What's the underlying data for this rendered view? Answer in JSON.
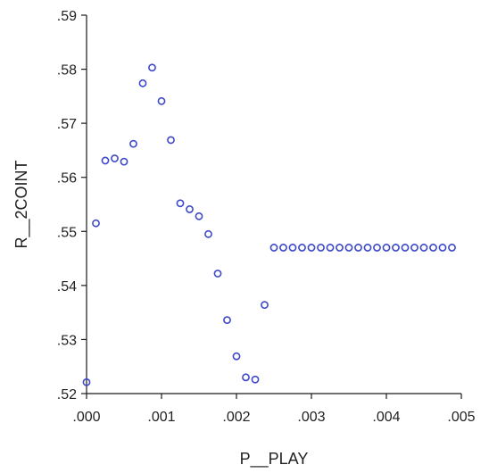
{
  "chart_data": {
    "type": "scatter",
    "xlabel": "P__PLAY",
    "ylabel": "R__2COINT",
    "xlim": [
      0.0,
      0.005
    ],
    "ylim": [
      0.52,
      0.59
    ],
    "x_ticks": [
      ".000",
      ".001",
      ".002",
      ".003",
      ".004",
      ".005"
    ],
    "y_ticks": [
      ".52",
      ".53",
      ".54",
      ".55",
      ".56",
      ".57",
      ".58",
      ".59"
    ],
    "grid": false,
    "marker": "hollow-circle",
    "point_color": "#3d48c8",
    "x": [
      0.0,
      0.000125,
      0.00025,
      0.000375,
      0.0005,
      0.000625,
      0.00075,
      0.000875,
      0.001,
      0.001125,
      0.00125,
      0.001375,
      0.0015,
      0.001625,
      0.00175,
      0.001875,
      0.002,
      0.002125,
      0.00225,
      0.002375,
      0.0025,
      0.002625,
      0.00275,
      0.002875,
      0.003,
      0.003125,
      0.00325,
      0.003375,
      0.0035,
      0.003625,
      0.00375,
      0.003875,
      0.004,
      0.004125,
      0.00425,
      0.004375,
      0.0045,
      0.004625,
      0.00475,
      0.004875
    ],
    "y": [
      0.5221,
      0.5515,
      0.5631,
      0.5635,
      0.5629,
      0.5662,
      0.5774,
      0.5803,
      0.5741,
      0.5669,
      0.5552,
      0.5541,
      0.5528,
      0.5495,
      0.5422,
      0.5336,
      0.5269,
      0.523,
      0.5226,
      0.5364,
      0.547,
      0.547,
      0.547,
      0.547,
      0.547,
      0.547,
      0.547,
      0.547,
      0.547,
      0.547,
      0.547,
      0.547,
      0.547,
      0.547,
      0.547,
      0.547,
      0.547,
      0.547,
      0.547,
      0.547
    ]
  }
}
